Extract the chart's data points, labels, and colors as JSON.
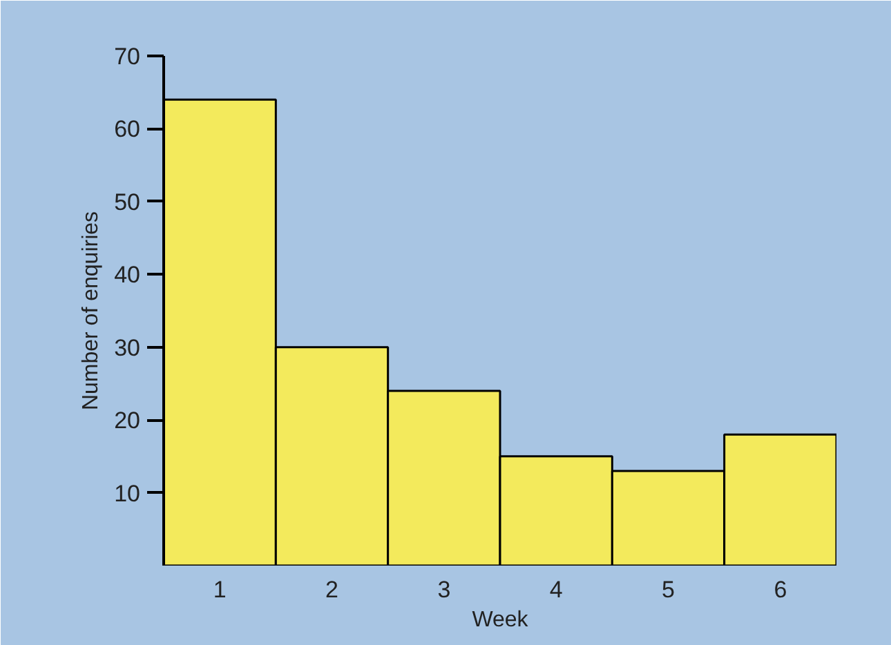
{
  "chart_data": {
    "type": "bar",
    "xlabel": "Week",
    "ylabel": "Number of enquiries",
    "categories": [
      "1",
      "2",
      "3",
      "4",
      "5",
      "6"
    ],
    "values": [
      64,
      30,
      24,
      15,
      13,
      18
    ],
    "color": "#f3ea5c",
    "ylim": [
      0,
      70
    ],
    "yticks": [
      10,
      20,
      30,
      40,
      50,
      60,
      70
    ],
    "grid": false
  }
}
